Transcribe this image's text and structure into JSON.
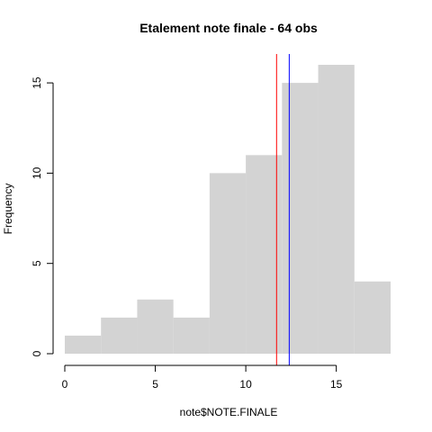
{
  "chart_data": {
    "type": "bar",
    "title": "Etalement note finale - 64 obs",
    "xlabel": "note$NOTE.FINALE",
    "ylabel": "Frequency",
    "bins": [
      {
        "from": 0,
        "to": 2,
        "count": 1
      },
      {
        "from": 2,
        "to": 4,
        "count": 2
      },
      {
        "from": 4,
        "to": 6,
        "count": 3
      },
      {
        "from": 6,
        "to": 8,
        "count": 2
      },
      {
        "from": 8,
        "to": 10,
        "count": 10
      },
      {
        "from": 10,
        "to": 12,
        "count": 11
      },
      {
        "from": 12,
        "to": 14,
        "count": 15
      },
      {
        "from": 14,
        "to": 16,
        "count": 16
      },
      {
        "from": 16,
        "to": 18,
        "count": 4
      }
    ],
    "xlim": [
      0,
      18
    ],
    "ylim": [
      0,
      16
    ],
    "x_ticks": [
      "0",
      "5",
      "10",
      "15"
    ],
    "y_ticks": [
      "0",
      "5",
      "10",
      "15"
    ],
    "bar_color": "#d3d3d3",
    "reference_lines": [
      {
        "x": 11.7,
        "color": "#ff0000"
      },
      {
        "x": 12.4,
        "color": "#0000ff"
      }
    ]
  }
}
